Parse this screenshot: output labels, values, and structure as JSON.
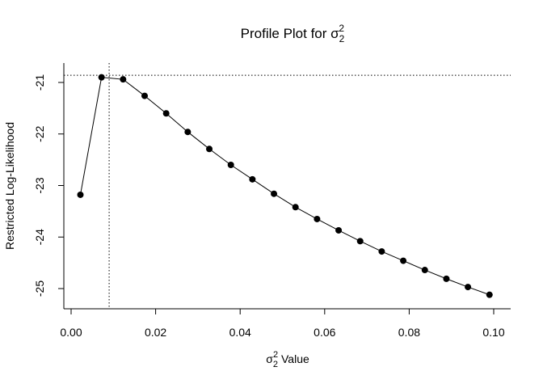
{
  "chart_data": {
    "type": "line",
    "title": "Profile Plot for σ",
    "title_sup": "2",
    "title_sub": "2",
    "xlabel_symbol": "σ",
    "xlabel_sup": "2",
    "xlabel_sub": "2",
    "xlabel_text": " Value",
    "ylabel": "Restricted Log-Likelihood",
    "xlim": [
      0,
      0.1
    ],
    "ylim": [
      -25.2,
      -20.6
    ],
    "x_ticks": [
      {
        "value": 0.0,
        "label": "0.00"
      },
      {
        "value": 0.02,
        "label": "0.02"
      },
      {
        "value": 0.04,
        "label": "0.04"
      },
      {
        "value": 0.06,
        "label": "0.06"
      },
      {
        "value": 0.08,
        "label": "0.08"
      },
      {
        "value": 0.1,
        "label": "0.10"
      }
    ],
    "y_ticks": [
      {
        "value": -21,
        "label": "-21"
      },
      {
        "value": -22,
        "label": "-22"
      },
      {
        "value": -23,
        "label": "-23"
      },
      {
        "value": -24,
        "label": "-24"
      },
      {
        "value": -25,
        "label": "-25"
      }
    ],
    "series": [
      {
        "x": [
          0.0022,
          0.0072,
          0.0123,
          0.0174,
          0.0225,
          0.0276,
          0.0327,
          0.0378,
          0.0429,
          0.048,
          0.0531,
          0.0582,
          0.0633,
          0.0684,
          0.0735,
          0.0786,
          0.0837,
          0.0888,
          0.0939,
          0.099
        ],
        "y": [
          -23.18,
          -20.9,
          -20.94,
          -21.26,
          -21.6,
          -21.96,
          -22.29,
          -22.6,
          -22.88,
          -23.16,
          -23.42,
          -23.65,
          -23.87,
          -24.08,
          -24.28,
          -24.46,
          -24.64,
          -24.81,
          -24.97,
          -25.12
        ]
      }
    ],
    "reference_lines": [
      {
        "axis": "y",
        "value": -20.86,
        "style": "dotted"
      },
      {
        "axis": "x",
        "value": 0.009,
        "style": "dotted"
      }
    ],
    "grid": false,
    "legend": "none"
  }
}
